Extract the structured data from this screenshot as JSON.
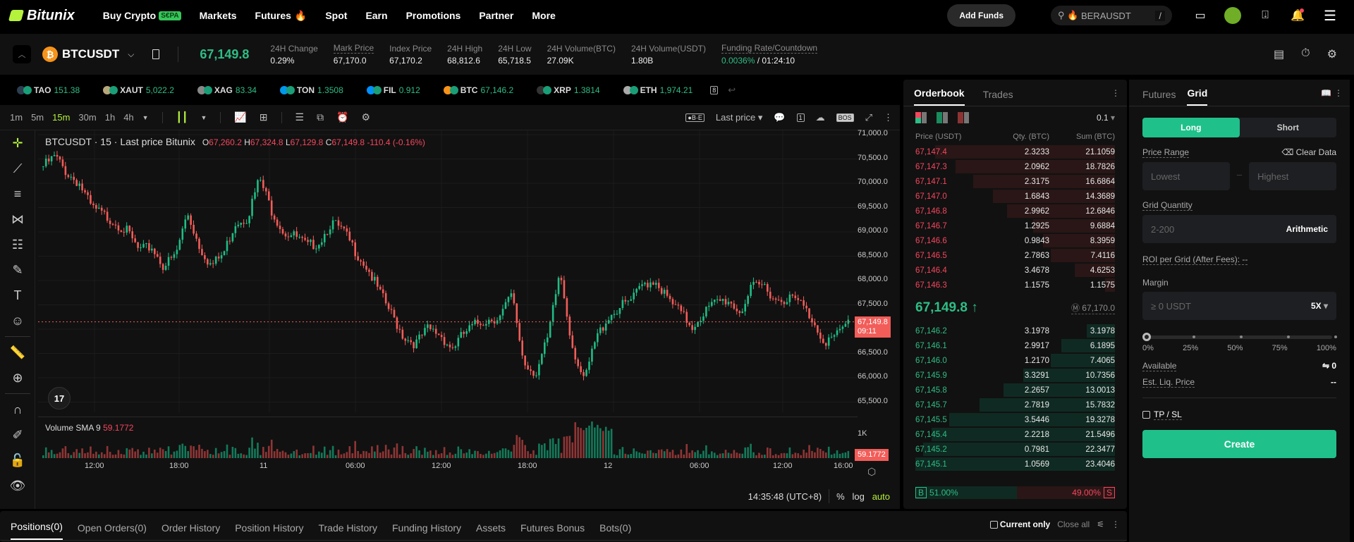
{
  "nav": {
    "brand": "Bitunix",
    "items": [
      {
        "label": "Buy Crypto",
        "badge": "S€PA"
      },
      {
        "label": "Markets"
      },
      {
        "label": "Futures",
        "badge_icon": "fire-icon"
      },
      {
        "label": "Spot"
      },
      {
        "label": "Earn"
      },
      {
        "label": "Promotions"
      },
      {
        "label": "Partner"
      },
      {
        "label": "More"
      }
    ],
    "add_funds": "Add Funds",
    "search_placeholder": "BERAUSDT",
    "search_shortcut": "/"
  },
  "ticker": {
    "symbol": "BTCUSDT",
    "coin_glyph": "₿",
    "last_price": "67,149.8",
    "stats": [
      {
        "label": "24H Change",
        "value": "0.29%",
        "color": "green"
      },
      {
        "label": "Mark Price",
        "value": "67,170.0",
        "dashed": true
      },
      {
        "label": "Index Price",
        "value": "67,170.2"
      },
      {
        "label": "24H High",
        "value": "68,812.6"
      },
      {
        "label": "24H Low",
        "value": "65,718.5"
      },
      {
        "label": "24H Volume(BTC)",
        "value": "27.09K"
      },
      {
        "label": "24H Volume(USDT)",
        "value": "1.80B"
      },
      {
        "label": "Funding Rate/Countdown",
        "value_rate": "0.0036%",
        "value_countdown": " / 01:24:10",
        "dashed": true
      }
    ]
  },
  "favorites": [
    {
      "name": "TAO",
      "price": "151.38",
      "color": "#2c3e50"
    },
    {
      "name": "XAUT",
      "price": "5,022.2",
      "color": "#b8a77a"
    },
    {
      "name": "XAG",
      "price": "83.34",
      "color": "#888888"
    },
    {
      "name": "TON",
      "price": "1.3508",
      "color": "#0098ea"
    },
    {
      "name": "FIL",
      "price": "0.912",
      "color": "#0090ff"
    },
    {
      "name": "BTC",
      "price": "67,146.2",
      "color": "#f7931a"
    },
    {
      "name": "XRP",
      "price": "1.3814",
      "color": "#333333"
    },
    {
      "name": "ETH",
      "price": "1,974.21",
      "color": "#aaaaaa"
    }
  ],
  "favorites_count": "8",
  "chart": {
    "timeframes": [
      "1m",
      "5m",
      "15m",
      "30m",
      "1h",
      "4h"
    ],
    "active_timeframe": "15m",
    "price_type": "Last price",
    "legend_title": "BTCUSDT · 15 · Last price Bitunix",
    "ohlc": {
      "o": "67,260.2",
      "h": "67,324.8",
      "l": "67,129.8",
      "c": "67,149.8",
      "chg": "-110.4 (-0.16%)"
    },
    "y_ticks": [
      "71,000.0",
      "70,500.0",
      "70,000.0",
      "69,500.0",
      "69,000.0",
      "68,500.0",
      "68,000.0",
      "67,500.0",
      "66,500.0",
      "66,000.0",
      "65,500.0"
    ],
    "current_price_tag": "67,149.8",
    "countdown_tag": "09:11",
    "x_ticks": [
      "12:00",
      "18:00",
      "11",
      "06:00",
      "12:00",
      "18:00",
      "12",
      "06:00",
      "12:00",
      "16:00"
    ],
    "volume_label": "Volume SMA 9",
    "volume_value": "59.1772",
    "volume_axis": "1K",
    "time": "14:35:48 (UTC+8)",
    "scale_pct": "%",
    "scale_log": "log",
    "scale_auto": "auto",
    "tv_logo": "17"
  },
  "orderbook": {
    "tabs": [
      "Orderbook",
      "Trades"
    ],
    "step": "0.1",
    "headers": [
      "Price (USDT)",
      "Qty. (BTC)",
      "Sum (BTC)"
    ],
    "asks": [
      {
        "price": "67,147.4",
        "qty": "2.3233",
        "sum": "21.1059",
        "depth": 90
      },
      {
        "price": "67,147.3",
        "qty": "2.0962",
        "sum": "18.7826",
        "depth": 80
      },
      {
        "price": "67,147.1",
        "qty": "2.3175",
        "sum": "16.6864",
        "depth": 71
      },
      {
        "price": "67,147.0",
        "qty": "1.6843",
        "sum": "14.3689",
        "depth": 61
      },
      {
        "price": "67,146.8",
        "qty": "2.9962",
        "sum": "12.6846",
        "depth": 54
      },
      {
        "price": "67,146.7",
        "qty": "1.2925",
        "sum": "9.6884",
        "depth": 41
      },
      {
        "price": "67,146.6",
        "qty": "0.9843",
        "sum": "8.3959",
        "depth": 36
      },
      {
        "price": "67,146.5",
        "qty": "2.7863",
        "sum": "7.4116",
        "depth": 32
      },
      {
        "price": "67,146.4",
        "qty": "3.4678",
        "sum": "4.6253",
        "depth": 20
      },
      {
        "price": "67,146.3",
        "qty": "1.1575",
        "sum": "1.1575",
        "depth": 5
      }
    ],
    "mid_price": "67,149.8 ↑",
    "mark_price": "67,170.0",
    "bids": [
      {
        "price": "67,146.2",
        "qty": "3.1978",
        "sum": "3.1978",
        "depth": 14
      },
      {
        "price": "67,146.1",
        "qty": "2.9917",
        "sum": "6.1895",
        "depth": 27
      },
      {
        "price": "67,146.0",
        "qty": "1.2170",
        "sum": "7.4065",
        "depth": 32
      },
      {
        "price": "67,145.9",
        "qty": "3.3291",
        "sum": "10.7356",
        "depth": 46
      },
      {
        "price": "67,145.8",
        "qty": "2.2657",
        "sum": "13.0013",
        "depth": 56
      },
      {
        "price": "67,145.7",
        "qty": "2.7819",
        "sum": "15.7832",
        "depth": 68
      },
      {
        "price": "67,145.5",
        "qty": "3.5446",
        "sum": "19.3278",
        "depth": 83
      },
      {
        "price": "67,145.4",
        "qty": "2.2218",
        "sum": "21.5496",
        "depth": 92
      },
      {
        "price": "67,145.2",
        "qty": "0.7981",
        "sum": "22.3477",
        "depth": 96
      },
      {
        "price": "67,145.1",
        "qty": "1.0569",
        "sum": "23.4046",
        "depth": 100
      }
    ],
    "buy_label": "B",
    "buy_pct": "51.00%",
    "sell_label": "S",
    "sell_pct": "49.00%"
  },
  "grid": {
    "tabs": [
      "Futures",
      "Grid"
    ],
    "long": "Long",
    "short": "Short",
    "price_range": "Price Range",
    "clear_data": "Clear Data",
    "lowest_placeholder": "Lowest",
    "highest_placeholder": "Highest",
    "grid_quantity": "Grid Quantity",
    "qty_placeholder": "2-200",
    "mode": "Arithmetic",
    "roi": "ROI per Grid (After Fees): --",
    "margin": "Margin",
    "margin_placeholder": "≥ 0 USDT",
    "leverage": "5X",
    "percents": [
      "0%",
      "25%",
      "50%",
      "75%",
      "100%"
    ],
    "available_label": "Available",
    "available_value": "⇋ 0",
    "liq_label": "Est. Liq. Price",
    "liq_value": "--",
    "tpsl": "TP / SL",
    "create": "Create"
  },
  "bottom": {
    "tabs": [
      "Positions(0)",
      "Open Orders(0)",
      "Order History",
      "Position History",
      "Trade History",
      "Funding History",
      "Assets",
      "Futures Bonus",
      "Bots(0)"
    ],
    "current_only": "Current only",
    "close_all": "Close all"
  },
  "colors": {
    "up": "#2ebd85",
    "down": "#f6465d",
    "accent": "#b5f23c",
    "create": "#20c08b"
  }
}
